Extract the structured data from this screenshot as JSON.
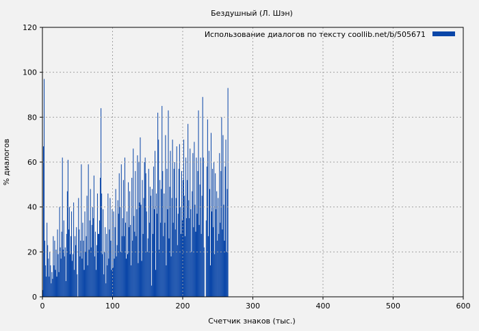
{
  "chart_data": {
    "type": "bar",
    "title": "Бездушный (Л. Шэн)",
    "xlabel": "Счетчик знаков (тыс.)",
    "ylabel": "% диалогов",
    "xlim": [
      0,
      600
    ],
    "ylim": [
      0,
      120
    ],
    "xticks": [
      0,
      100,
      200,
      300,
      400,
      500,
      600
    ],
    "yticks": [
      0,
      20,
      40,
      60,
      80,
      100,
      120
    ],
    "grid": true,
    "legend_position": "top-right",
    "bar_color": "#0a46a8",
    "series": [
      {
        "name": "Использование диалогов по тексту  coollib.net/b/505671",
        "x_step": 1,
        "values": [
          3,
          67,
          97,
          25,
          14,
          9,
          33,
          23,
          17,
          9,
          20,
          14,
          6,
          11,
          8,
          27,
          14,
          25,
          12,
          21,
          9,
          30,
          19,
          11,
          40,
          22,
          17,
          29,
          62,
          21,
          34,
          18,
          22,
          7,
          28,
          47,
          61,
          30,
          40,
          19,
          27,
          38,
          16,
          19,
          42,
          12,
          27,
          23,
          31,
          10,
          0,
          44,
          30,
          18,
          25,
          59,
          17,
          33,
          25,
          12,
          38,
          20,
          27,
          45,
          14,
          59,
          21,
          34,
          48,
          22,
          32,
          40,
          35,
          54,
          18,
          29,
          12,
          23,
          46,
          28,
          28,
          34,
          53,
          84,
          46,
          19,
          39,
          10,
          20,
          31,
          6,
          28,
          14,
          46,
          17,
          30,
          44,
          25,
          12,
          39,
          13,
          38,
          17,
          31,
          48,
          18,
          23,
          43,
          37,
          55,
          40,
          20,
          59,
          27,
          35,
          52,
          27,
          62,
          33,
          17,
          38,
          19,
          51,
          31,
          47,
          32,
          14,
          53,
          25,
          66,
          36,
          29,
          56,
          27,
          39,
          63,
          15,
          60,
          42,
          71,
          41,
          16,
          52,
          28,
          44,
          60,
          62,
          55,
          38,
          20,
          26,
          57,
          33,
          49,
          45,
          5,
          48,
          28,
          58,
          39,
          65,
          12,
          46,
          37,
          82,
          70,
          21,
          52,
          33,
          48,
          85,
          56,
          27,
          46,
          33,
          72,
          14,
          57,
          39,
          83,
          26,
          49,
          65,
          18,
          44,
          70,
          33,
          57,
          60,
          30,
          44,
          67,
          23,
          37,
          57,
          68,
          40,
          28,
          56,
          34,
          52,
          70,
          45,
          27,
          62,
          35,
          52,
          77,
          43,
          35,
          66,
          39,
          20,
          47,
          64,
          31,
          69,
          41,
          29,
          62,
          37,
          56,
          83,
          32,
          50,
          62,
          28,
          45,
          89,
          62,
          22,
          0,
          0,
          34,
          58,
          79,
          27,
          65,
          48,
          14,
          73,
          38,
          57,
          31,
          60,
          19,
          55,
          39,
          47,
          25,
          44,
          28,
          64,
          33,
          56,
          80,
          30,
          72,
          41,
          25,
          58,
          70,
          20,
          48,
          93
        ]
      }
    ]
  }
}
